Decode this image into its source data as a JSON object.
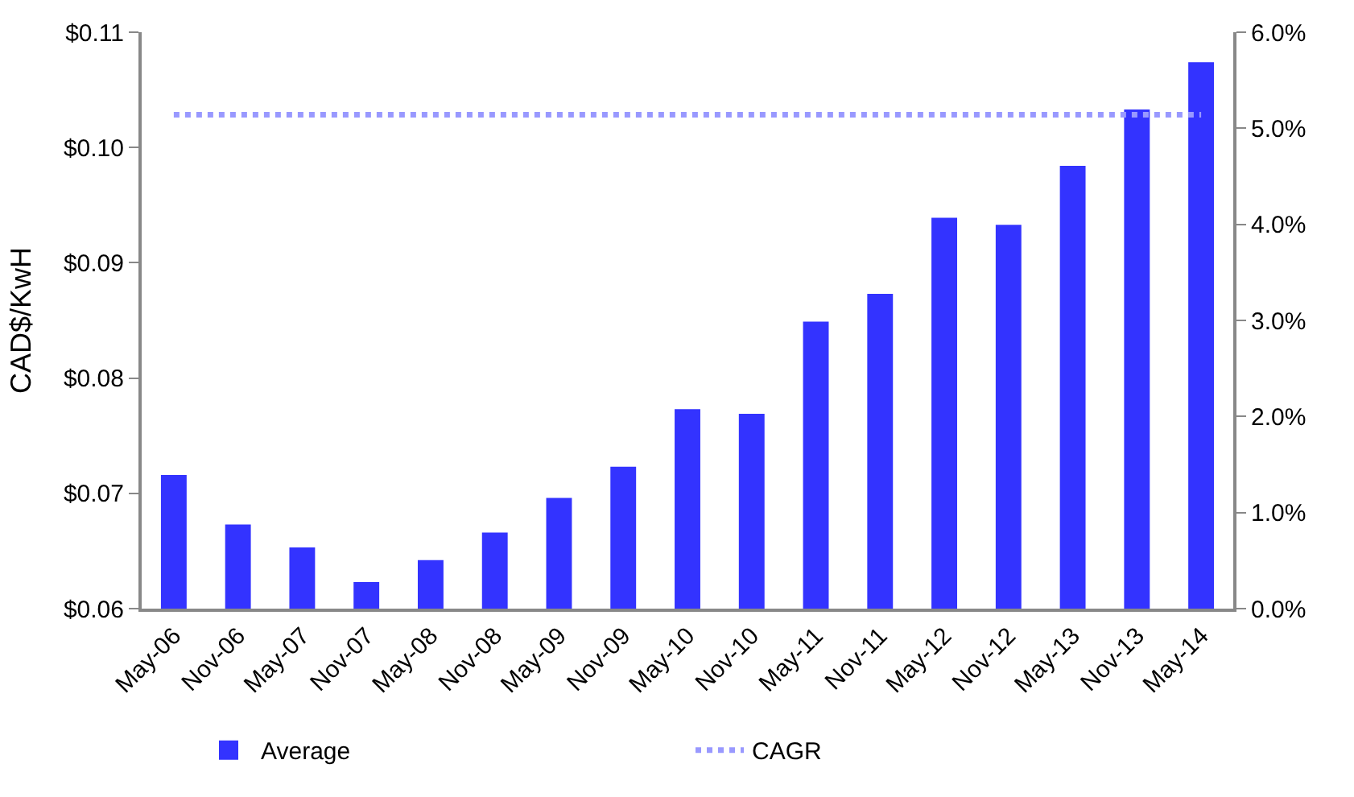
{
  "chart_data": {
    "type": "bar",
    "ylabel": "CAD$/KwH",
    "categories": [
      "May-06",
      "Nov-06",
      "May-07",
      "Nov-07",
      "May-08",
      "Nov-08",
      "May-09",
      "Nov-09",
      "May-10",
      "Nov-10",
      "May-11",
      "Nov-11",
      "May-12",
      "Nov-12",
      "May-13",
      "Nov-13",
      "May-14"
    ],
    "series": [
      {
        "name": "Average",
        "color": "#3333ff",
        "values": [
          0.0716,
          0.0673,
          0.0653,
          0.0623,
          0.0642,
          0.0666,
          0.0696,
          0.0723,
          0.0773,
          0.0769,
          0.0849,
          0.0873,
          0.0939,
          0.0933,
          0.0984,
          0.1033,
          0.1074
        ]
      },
      {
        "name": "CAGR",
        "type": "line",
        "axis": "y2",
        "color": "#9999ff",
        "line_style": "dotted",
        "values": [
          5.14,
          5.14,
          5.14,
          5.14,
          5.14,
          5.14,
          5.14,
          5.14,
          5.14,
          5.14,
          5.14,
          5.14,
          5.14,
          5.14,
          5.14,
          5.14,
          5.14
        ]
      }
    ],
    "ylim": [
      0.06,
      0.11
    ],
    "yticks": [
      {
        "value": 0.06,
        "label": "$0.06"
      },
      {
        "value": 0.07,
        "label": "$0.07"
      },
      {
        "value": 0.08,
        "label": "$0.08"
      },
      {
        "value": 0.09,
        "label": "$0.09"
      },
      {
        "value": 0.1,
        "label": "$0.10"
      },
      {
        "value": 0.11,
        "label": "$0.11"
      }
    ],
    "y2lim": [
      0,
      6
    ],
    "y2ticks": [
      {
        "value": 0,
        "label": "0.0%"
      },
      {
        "value": 1,
        "label": "1.0%"
      },
      {
        "value": 2,
        "label": "2.0%"
      },
      {
        "value": 3,
        "label": "3.0%"
      },
      {
        "value": 4,
        "label": "4.0%"
      },
      {
        "value": 5,
        "label": "5.0%"
      },
      {
        "value": 6,
        "label": "6.0%"
      }
    ],
    "legend": "bottom",
    "marker": "none"
  }
}
